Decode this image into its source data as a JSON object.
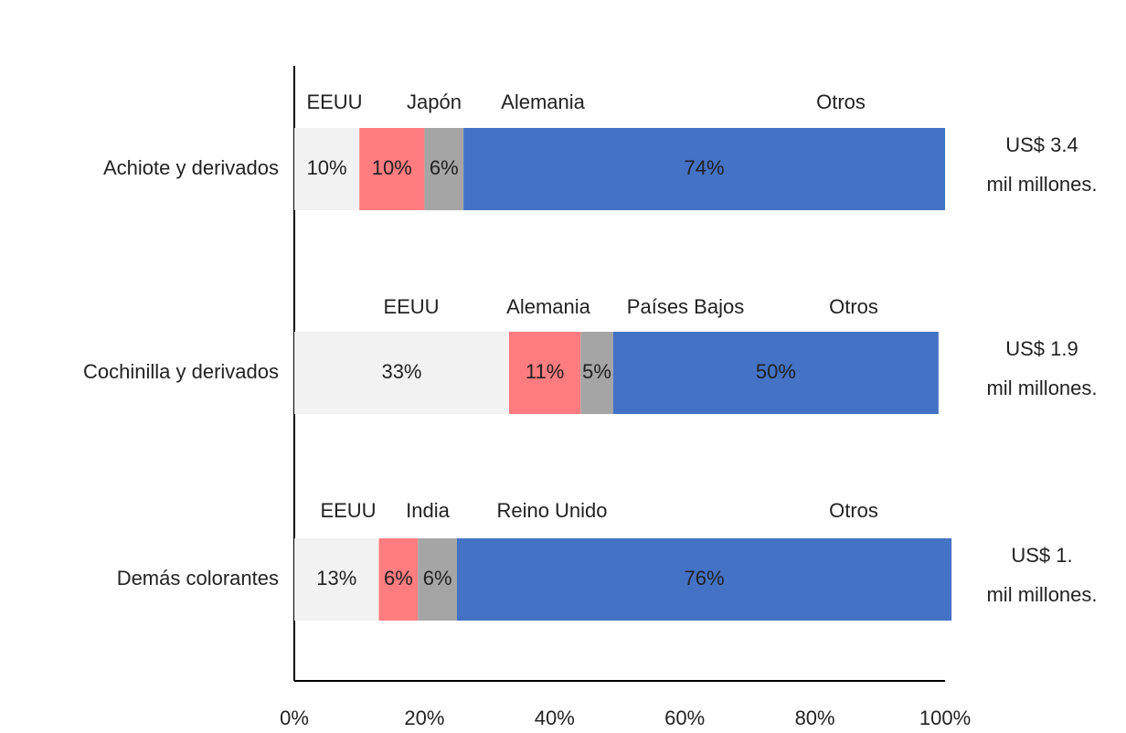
{
  "chart_data": {
    "type": "stacked-bar-horizontal",
    "categories": [
      "Achiote y derivados",
      "Cochinilla y derivados",
      "Demás colorantes"
    ],
    "series": [
      {
        "color": "#f2f2f2",
        "labels": [
          "EEUU",
          "EEUU",
          "EEUU"
        ],
        "values": [
          10,
          33,
          13
        ],
        "value_labels": [
          "10%",
          "33%",
          "13%"
        ]
      },
      {
        "color": "#ff7c80",
        "labels": [
          "Japón",
          "Alemania",
          "India"
        ],
        "values": [
          10,
          11,
          6
        ],
        "value_labels": [
          "10%",
          "11%",
          "6%"
        ]
      },
      {
        "color": "#a5a5a5",
        "labels": [
          "Alemania",
          "Países Bajos",
          "Reino Unido"
        ],
        "values": [
          6,
          5,
          6
        ],
        "value_labels": [
          "6%",
          "5%",
          "6%"
        ]
      },
      {
        "color": "#4472c4",
        "labels": [
          "Otros",
          "Otros",
          "Otros"
        ],
        "values": [
          74,
          50,
          76
        ],
        "value_labels": [
          "74%",
          "50%",
          "76%"
        ]
      }
    ],
    "totals": [
      [
        "US$ 3.4",
        "mil millones."
      ],
      [
        "US$ 1.9",
        "mil millones."
      ],
      [
        "US$ 1.",
        "mil millones."
      ]
    ],
    "xlim": [
      0,
      100
    ],
    "xticks": [
      {
        "value": 0,
        "label": "0%"
      },
      {
        "value": 20,
        "label": "20%"
      },
      {
        "value": 40,
        "label": "40%"
      },
      {
        "value": 60,
        "label": "60%"
      },
      {
        "value": 80,
        "label": "80%"
      },
      {
        "value": 100,
        "label": "100%"
      }
    ]
  }
}
